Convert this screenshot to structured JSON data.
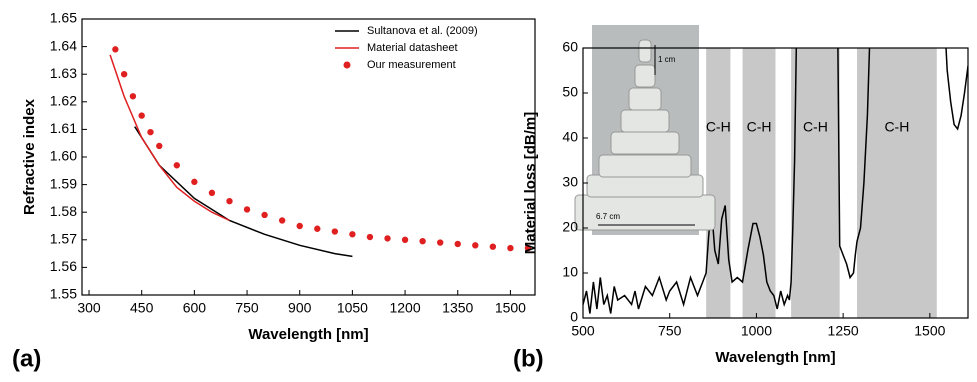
{
  "chart_data": [
    {
      "type": "line",
      "panel_label": "(a)",
      "xlabel": "Wavelength [nm]",
      "ylabel": "Refractive index",
      "xlim": [
        280,
        1570
      ],
      "ylim": [
        1.55,
        1.65
      ],
      "xticks": [
        300,
        450,
        600,
        750,
        900,
        1050,
        1200,
        1350,
        1500
      ],
      "yticks": [
        1.55,
        1.56,
        1.57,
        1.58,
        1.59,
        {
          "value": 1.6,
          "label": "1.60"
        },
        1.61,
        1.62,
        1.63,
        1.64,
        1.65
      ],
      "legend": "upper right",
      "series": [
        {
          "name": "Sultanova et al. (2009)",
          "color": "#000000",
          "x": [
            430,
            500,
            600,
            700,
            800,
            900,
            1000,
            1050
          ],
          "values": [
            1.611,
            1.597,
            1.585,
            1.577,
            1.572,
            1.568,
            1.565,
            1.564
          ]
        },
        {
          "name": "Material datasheet",
          "color": "#e02020",
          "x": [
            360,
            400,
            450,
            500,
            550,
            600,
            650,
            700
          ],
          "values": [
            1.637,
            1.622,
            1.607,
            1.597,
            1.589,
            1.584,
            1.58,
            1.577
          ]
        },
        {
          "name": "Our measurement",
          "color": "#e02020",
          "marker": "circle",
          "x": [
            375,
            400,
            425,
            450,
            475,
            500,
            550,
            600,
            650,
            700,
            750,
            800,
            850,
            900,
            950,
            1000,
            1050,
            1100,
            1150,
            1200,
            1250,
            1300,
            1350,
            1400,
            1450,
            1500,
            1550
          ],
          "values": [
            1.639,
            1.63,
            1.622,
            1.615,
            1.609,
            1.604,
            1.597,
            1.591,
            1.587,
            1.584,
            1.581,
            1.579,
            1.577,
            1.575,
            1.574,
            1.573,
            1.572,
            1.571,
            1.5705,
            1.57,
            1.5695,
            1.569,
            1.5685,
            1.568,
            1.5675,
            1.567,
            1.567
          ]
        }
      ]
    },
    {
      "type": "line",
      "panel_label": "(b)",
      "xlabel": "Wavelength [nm]",
      "ylabel": "Material loss [dB/m]",
      "xlim": [
        500,
        1610
      ],
      "ylim": [
        0,
        60
      ],
      "xticks": [
        500,
        750,
        1000,
        1250,
        1500
      ],
      "yticks": [
        0,
        10,
        20,
        30,
        40,
        50,
        60
      ],
      "bands": [
        {
          "range": [
            855,
            925
          ],
          "label": "C-H"
        },
        {
          "range": [
            960,
            1055
          ],
          "label": "C-H"
        },
        {
          "range": [
            1100,
            1240
          ],
          "label": "C-H"
        },
        {
          "range": [
            1290,
            1520
          ],
          "label": "C-H"
        }
      ],
      "inset_labels": [
        "1 cm",
        "6.7 cm"
      ],
      "series": [
        {
          "name": "Material loss",
          "color": "#000000",
          "x": [
            500,
            510,
            520,
            530,
            540,
            550,
            560,
            570,
            580,
            590,
            600,
            620,
            640,
            650,
            660,
            680,
            700,
            720,
            740,
            750,
            770,
            790,
            810,
            830,
            845,
            855,
            862,
            870,
            880,
            890,
            900,
            910,
            920,
            930,
            945,
            960,
            975,
            990,
            1000,
            1010,
            1020,
            1030,
            1040,
            1050,
            1060,
            1070,
            1080,
            1090,
            1095,
            1100,
            1105,
            1110,
            1115,
            1120,
            1230,
            1235,
            1240,
            1250,
            1260,
            1270,
            1280,
            1285,
            1290,
            1300,
            1310,
            1320,
            1330,
            1540,
            1550,
            1560,
            1570,
            1580,
            1590,
            1600,
            1610
          ],
          "values": [
            3,
            6,
            1,
            8,
            2,
            9,
            3,
            5,
            1,
            7,
            4,
            5,
            3,
            6,
            2,
            7,
            5,
            9,
            4,
            6,
            8,
            3,
            9,
            5,
            8,
            10,
            18,
            25,
            15,
            12,
            22,
            25,
            13,
            8,
            9,
            8,
            15,
            21,
            21,
            18,
            14,
            8,
            6,
            5,
            2,
            6,
            3,
            5,
            4,
            8,
            20,
            35,
            60,
            70,
            70,
            60,
            16,
            14,
            12,
            9,
            10,
            14,
            17,
            20,
            30,
            45,
            70,
            70,
            55,
            48,
            43,
            42,
            45,
            50,
            56
          ]
        }
      ]
    }
  ]
}
